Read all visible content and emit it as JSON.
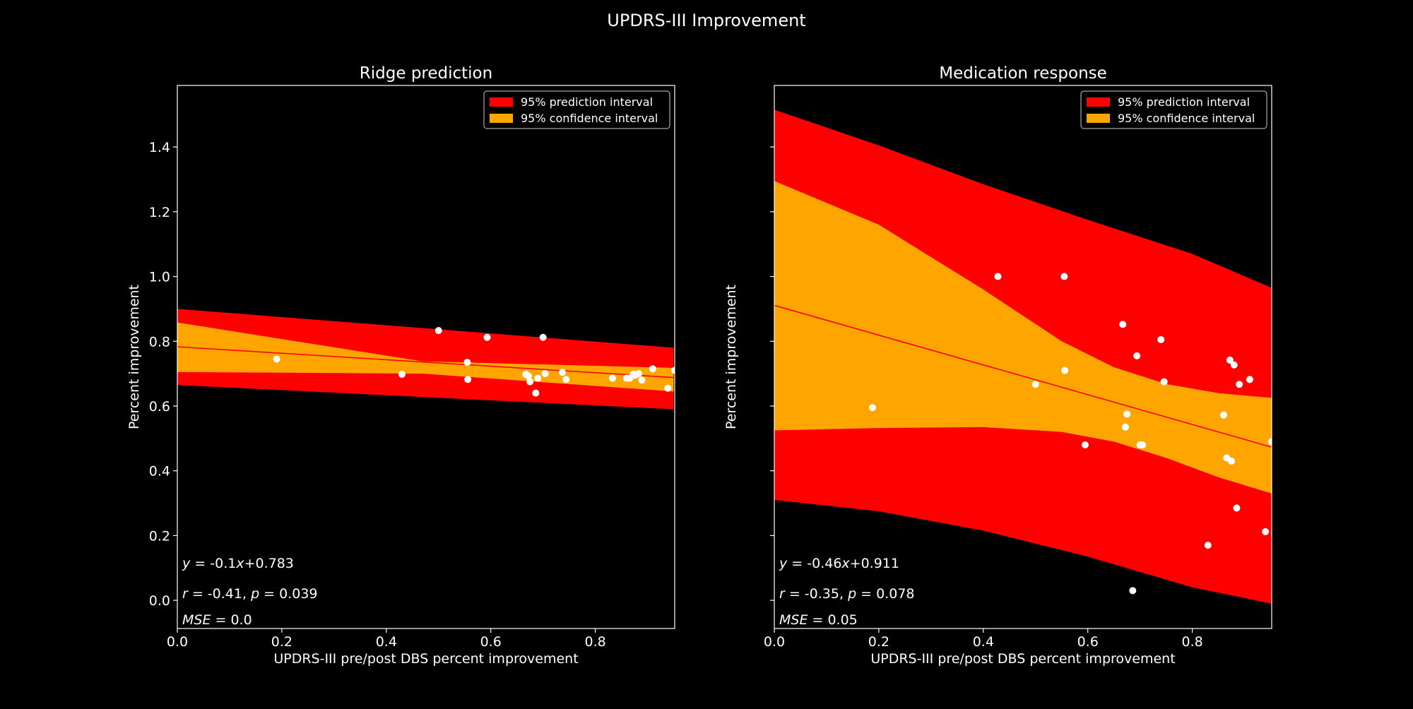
{
  "figure": {
    "title": "UPDRS-III Improvement",
    "background": "#000000",
    "foreground": "#ffffff"
  },
  "chart_data": [
    {
      "type": "scatter",
      "title": "Ridge prediction",
      "xlabel": "UPDRS-III pre/post DBS percent improvement",
      "ylabel": "Percent improvement",
      "xlim": [
        0.0,
        0.952
      ],
      "ylim": [
        -0.087,
        1.59
      ],
      "xticks": [
        "0.0",
        "0.2",
        "0.4",
        "0.6",
        "0.8"
      ],
      "yticks": [
        "0.0",
        "0.2",
        "0.4",
        "0.6",
        "0.8",
        "1.0",
        "1.2",
        "1.4"
      ],
      "show_ytick_labels": true,
      "legend": {
        "placement": "top-right",
        "entries": [
          {
            "label": "95% prediction interval",
            "color": "#ff0000"
          },
          {
            "label": "95% confidence interval",
            "color": "#ffa500"
          }
        ]
      },
      "fit": {
        "slope": -0.1,
        "intercept": 0.783,
        "color": "#ff0000"
      },
      "prediction_band": {
        "color": "#ff0000",
        "x": [
          0.0,
          0.95
        ],
        "lower": [
          0.665,
          0.59
        ],
        "upper": [
          0.9,
          0.78
        ]
      },
      "confidence_band": {
        "color": "#ffa500",
        "x": [
          0.0,
          0.47,
          0.95
        ],
        "lower": [
          0.705,
          0.7,
          0.645
        ],
        "upper": [
          0.858,
          0.738,
          0.718
        ]
      },
      "points": {
        "x": [
          0.19,
          0.43,
          0.5,
          0.555,
          0.556,
          0.593,
          0.667,
          0.672,
          0.675,
          0.686,
          0.69,
          0.7,
          0.704,
          0.737,
          0.744,
          0.833,
          0.86,
          0.866,
          0.873,
          0.876,
          0.883,
          0.889,
          0.91,
          0.939,
          0.952
        ],
        "y": [
          0.745,
          0.698,
          0.833,
          0.735,
          0.682,
          0.812,
          0.698,
          0.693,
          0.675,
          0.64,
          0.686,
          0.812,
          0.7,
          0.704,
          0.682,
          0.686,
          0.686,
          0.686,
          0.698,
          0.695,
          0.7,
          0.68,
          0.715,
          0.655,
          0.71
        ]
      },
      "annotations": [
        {
          "kind": "eq",
          "slope": "-0.1",
          "intercept": "0.783"
        },
        {
          "kind": "rp",
          "r": "-0.41",
          "p": "0.039"
        },
        {
          "kind": "mse",
          "mse": "0.0"
        }
      ]
    },
    {
      "type": "scatter",
      "title": "Medication response",
      "xlabel": "UPDRS-III pre/post DBS percent improvement",
      "ylabel": "Percent improvement",
      "xlim": [
        0.0,
        0.952
      ],
      "ylim": [
        -0.087,
        1.59
      ],
      "xticks": [
        "0.0",
        "0.2",
        "0.4",
        "0.6",
        "0.8"
      ],
      "yticks": [
        "0.0",
        "0.2",
        "0.4",
        "0.6",
        "0.8",
        "1.0",
        "1.2",
        "1.4"
      ],
      "show_ytick_labels": false,
      "legend": {
        "placement": "top-right",
        "entries": [
          {
            "label": "95% prediction interval",
            "color": "#ff0000"
          },
          {
            "label": "95% confidence interval",
            "color": "#ffa500"
          }
        ]
      },
      "fit": {
        "slope": -0.46,
        "intercept": 0.911,
        "color": "#ff0000"
      },
      "prediction_band": {
        "color": "#ff0000",
        "x": [
          0.0,
          0.2,
          0.4,
          0.6,
          0.8,
          0.952
        ],
        "lower": [
          0.31,
          0.275,
          0.215,
          0.135,
          0.04,
          -0.01
        ],
        "upper": [
          1.515,
          1.405,
          1.285,
          1.175,
          1.07,
          0.965
        ]
      },
      "confidence_band": {
        "color": "#ffa500",
        "x": [
          0.0,
          0.2,
          0.4,
          0.55,
          0.65,
          0.75,
          0.85,
          0.952
        ],
        "lower": [
          0.525,
          0.532,
          0.535,
          0.52,
          0.49,
          0.44,
          0.38,
          0.33
        ],
        "upper": [
          1.295,
          1.16,
          0.96,
          0.8,
          0.72,
          0.668,
          0.64,
          0.625
        ]
      },
      "points": {
        "x": [
          0.188,
          0.428,
          0.5,
          0.555,
          0.556,
          0.595,
          0.667,
          0.672,
          0.675,
          0.686,
          0.694,
          0.7,
          0.705,
          0.74,
          0.746,
          0.83,
          0.86,
          0.866,
          0.872,
          0.875,
          0.88,
          0.885,
          0.89,
          0.91,
          0.94,
          0.952
        ],
        "y": [
          0.595,
          1.0,
          0.667,
          1.0,
          0.71,
          0.48,
          0.852,
          0.535,
          0.575,
          0.03,
          0.755,
          0.48,
          0.48,
          0.805,
          0.675,
          0.17,
          0.572,
          0.44,
          0.742,
          0.43,
          0.727,
          0.285,
          0.667,
          0.682,
          0.212,
          0.49
        ]
      },
      "annotations": [
        {
          "kind": "eq",
          "slope": "-0.46",
          "intercept": "0.911"
        },
        {
          "kind": "rp",
          "r": "-0.35",
          "p": "0.078"
        },
        {
          "kind": "mse",
          "mse": "0.05"
        }
      ]
    }
  ]
}
